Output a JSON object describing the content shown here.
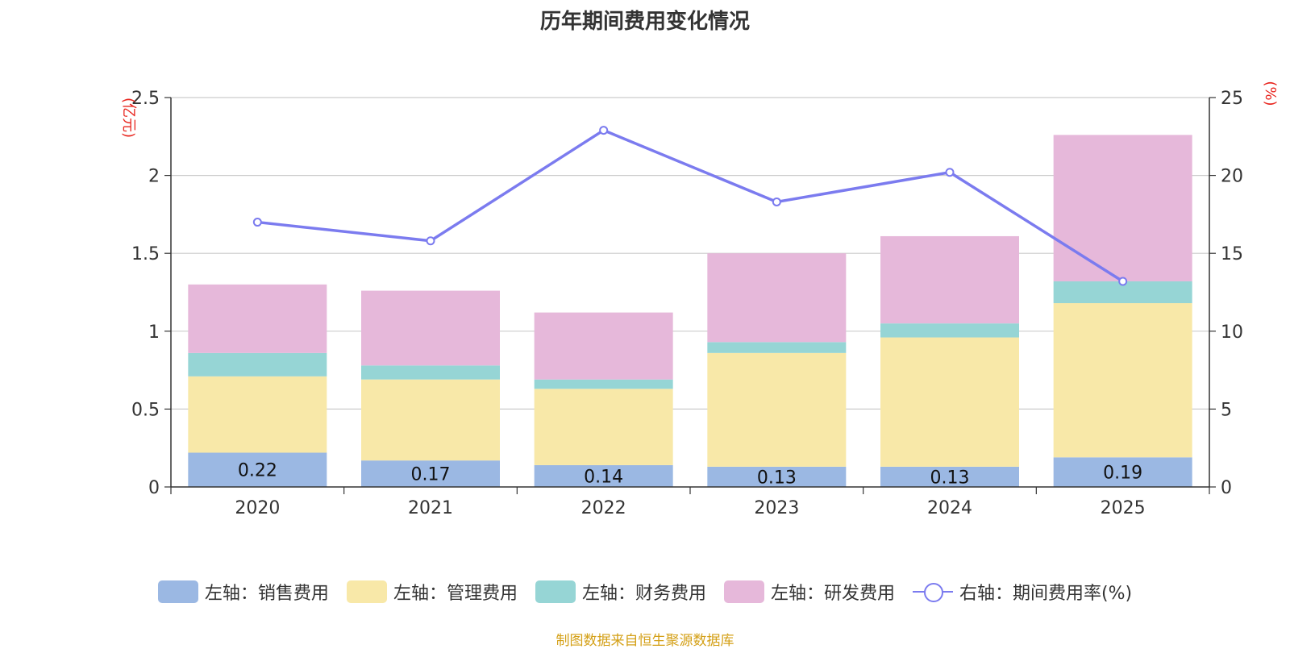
{
  "title": "历年期间费用变化情况",
  "source": "制图数据来自恒生聚源数据库",
  "legend": [
    {
      "label": "左轴：销售费用",
      "color": "#9bb8e3",
      "kind": "bar"
    },
    {
      "label": "左轴：管理费用",
      "color": "#f8e8a8",
      "kind": "bar"
    },
    {
      "label": "左轴：财务费用",
      "color": "#96d5d5",
      "kind": "bar"
    },
    {
      "label": "左轴：研发费用",
      "color": "#e6b8da",
      "kind": "bar"
    },
    {
      "label": "右轴：期间费用率(%)",
      "color": "#7b7bef",
      "kind": "line"
    }
  ],
  "chart_data": {
    "type": "bar",
    "stacked": true,
    "categories": [
      "2020",
      "2021",
      "2022",
      "2023",
      "2024",
      "2025"
    ],
    "series": [
      {
        "name": "左轴：销售费用",
        "axis": "left",
        "color": "#9bb8e3",
        "values": [
          0.22,
          0.17,
          0.14,
          0.13,
          0.13,
          0.19
        ],
        "labels": [
          "0.22",
          "0.17",
          "0.14",
          "0.13",
          "0.13",
          "0.19"
        ]
      },
      {
        "name": "左轴：管理费用",
        "axis": "left",
        "color": "#f8e8a8",
        "values": [
          0.49,
          0.52,
          0.49,
          0.73,
          0.83,
          0.99
        ]
      },
      {
        "name": "左轴：财务费用",
        "axis": "left",
        "color": "#96d5d5",
        "values": [
          0.15,
          0.09,
          0.06,
          0.07,
          0.09,
          0.14
        ]
      },
      {
        "name": "左轴：研发费用",
        "axis": "left",
        "color": "#e6b8da",
        "values": [
          0.44,
          0.48,
          0.43,
          0.57,
          0.56,
          0.94
        ]
      },
      {
        "name": "右轴：期间费用率(%)",
        "axis": "right",
        "type": "line",
        "color": "#7b7bef",
        "values": [
          17.0,
          15.8,
          22.9,
          18.3,
          20.2,
          13.2
        ]
      }
    ],
    "left_axis": {
      "label": "(亿元)",
      "min": 0,
      "max": 2.5,
      "ticks": [
        "0",
        "0.5",
        "1",
        "1.5",
        "2",
        "2.5"
      ]
    },
    "right_axis": {
      "label": "(%)",
      "min": 0,
      "max": 25,
      "ticks": [
        "0",
        "5",
        "10",
        "15",
        "20",
        "25"
      ]
    },
    "grid": true,
    "legend_position": "bottom"
  }
}
